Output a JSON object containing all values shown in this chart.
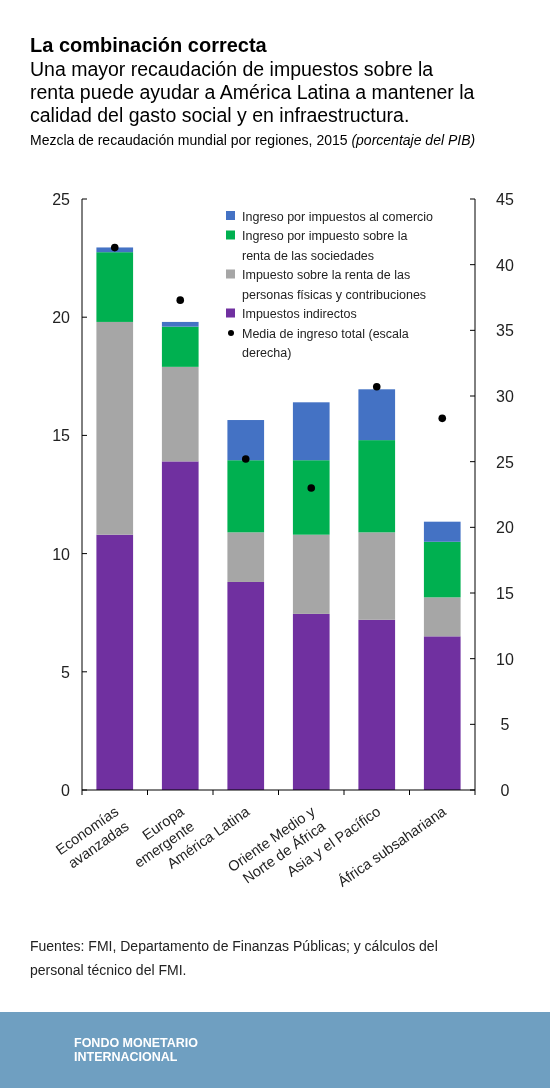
{
  "chart_data": {
    "type": "bar",
    "title": "La combinación correcta",
    "subtitle": "Una mayor recaudación de impuestos sobre la\nrenta puede ayudar a América Latina a mantener la\ncalidad del gasto social y en infraestructura.",
    "categories": [
      "Economías\navanzadas",
      "Europa\nemergente",
      "América Latina",
      "Oriente Medio y\nNorte de África",
      "Asia y el Pacífico",
      "África subsahariana"
    ],
    "stacked": true,
    "series": [
      {
        "name": "Impuestos indirectos",
        "color": "#7030a0",
        "values": [
          10.8,
          13.9,
          8.8,
          7.45,
          7.2,
          6.5
        ]
      },
      {
        "name": "Impuesto sobre la renta de las\npersonas físicas y contribuciones",
        "color": "#a6a6a6",
        "values": [
          9.0,
          4.0,
          2.1,
          3.35,
          3.7,
          1.65
        ]
      },
      {
        "name": "Ingreso por impuesto sobre la\nrenta de las sociedades",
        "color": "#00b050",
        "values": [
          2.95,
          1.7,
          3.05,
          3.15,
          3.9,
          2.35
        ]
      },
      {
        "name": "Ingreso por impuestos al comercio",
        "color": "#4472c4",
        "values": [
          0.2,
          0.2,
          1.7,
          2.45,
          2.15,
          0.85
        ]
      },
      {
        "name": "Media de ingreso total (escala\nderecha)",
        "type": "scatter",
        "axis": "y2",
        "marker": "circle",
        "color": "#000000",
        "values": [
          41.3,
          37.3,
          25.2,
          23.0,
          30.7,
          28.3
        ]
      }
    ],
    "ylim": [
      0,
      25
    ],
    "yticks": [
      0,
      5,
      10,
      15,
      20,
      25
    ],
    "y2lim": [
      0,
      45
    ],
    "y2ticks": [
      0,
      5,
      10,
      15,
      20,
      25,
      30,
      35,
      40,
      45
    ],
    "legend": "top right",
    "annotations": [
      "Mezcla de recaudación mundial por regiones, 2015 (porcentaje del PIB)",
      "Fuentes: FMI, Departamento de Finanzas Públicas; y cálculos del\npersonal técnico del FMI.",
      "FONDO MONETARIO\nINTERNACIONAL"
    ]
  }
}
